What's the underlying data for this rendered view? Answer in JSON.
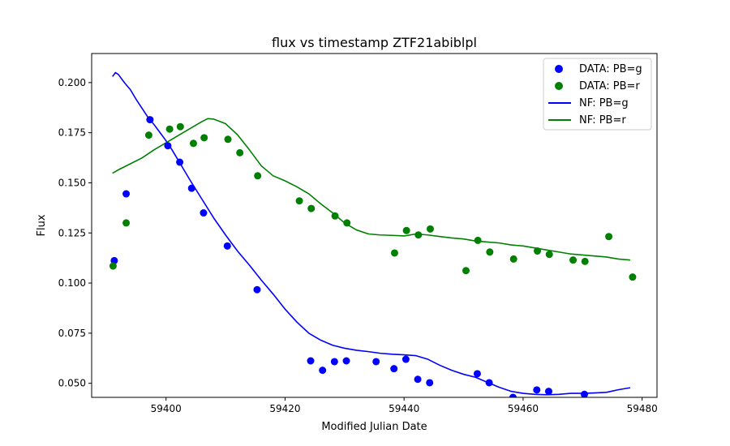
{
  "chart_data": {
    "type": "scatter",
    "title": "flux vs timestamp ZTF21abiblpl",
    "xlabel": "Modified Julian Date",
    "ylabel": "Flux",
    "xlim": [
      59387.5,
      59482.5
    ],
    "ylim": [
      0.043,
      0.2145
    ],
    "xticks": [
      59400,
      59420,
      59440,
      59460,
      59480
    ],
    "yticks": [
      0.05,
      0.075,
      0.1,
      0.125,
      0.15,
      0.175,
      0.2
    ],
    "xtick_labels": [
      "59400",
      "59420",
      "59440",
      "59460",
      "59480"
    ],
    "ytick_labels": [
      "0.050",
      "0.075",
      "0.100",
      "0.125",
      "0.150",
      "0.175",
      "0.200"
    ],
    "grid": false,
    "legend_position": "top-right",
    "colors": {
      "g": "#0000ff",
      "r": "#008000"
    },
    "series": [
      {
        "name": "DATA: PB=g",
        "kind": "scatter",
        "color": "#0000ff",
        "x": [
          59391.3,
          59393.3,
          59397.3,
          59400.3,
          59402.3,
          59404.3,
          59406.3,
          59410.3,
          59415.3,
          59424.3,
          59426.3,
          59428.3,
          59430.3,
          59435.3,
          59438.3,
          59440.3,
          59442.3,
          59444.3,
          59452.3,
          59454.3,
          59458.3,
          59460.3,
          59462.3,
          59464.3,
          59470.3
        ],
        "y": [
          0.1112,
          0.1445,
          0.1815,
          0.1685,
          0.1603,
          0.1473,
          0.135,
          0.1185,
          0.0967,
          0.0612,
          0.0565,
          0.0608,
          0.0612,
          0.0608,
          0.0573,
          0.062,
          0.052,
          0.0503,
          0.0548,
          0.0503,
          0.043,
          0.0413,
          0.0467,
          0.046,
          0.0445
        ]
      },
      {
        "name": "DATA: PB=r",
        "kind": "scatter",
        "color": "#008000",
        "x": [
          59391.1,
          59393.3,
          59397.1,
          59400.6,
          59402.4,
          59404.6,
          59406.4,
          59410.4,
          59412.4,
          59415.4,
          59422.4,
          59424.4,
          59428.4,
          59430.4,
          59438.4,
          59440.4,
          59442.4,
          59444.4,
          59450.4,
          59452.4,
          59454.4,
          59458.4,
          59462.4,
          59464.4,
          59468.4,
          59470.4,
          59474.4,
          59478.4
        ],
        "y": [
          0.1085,
          0.13,
          0.1738,
          0.1768,
          0.178,
          0.1697,
          0.1725,
          0.1717,
          0.165,
          0.1535,
          0.141,
          0.1372,
          0.1335,
          0.13,
          0.115,
          0.1262,
          0.124,
          0.127,
          0.1062,
          0.1213,
          0.1155,
          0.112,
          0.116,
          0.1143,
          0.1115,
          0.1108,
          0.1232,
          0.103
        ]
      },
      {
        "name": "NF: PB=g",
        "kind": "line",
        "color": "#0000ff",
        "x": [
          59391.0,
          59391.5,
          59392.0,
          59393.0,
          59394.0,
          59395.0,
          59396.0,
          59397.0,
          59398.0,
          59399.0,
          59400.0,
          59401.0,
          59402.0,
          59403.0,
          59404.0,
          59406.0,
          59408.0,
          59410.0,
          59412.0,
          59414.0,
          59416.0,
          59418.0,
          59420.0,
          59422.0,
          59424.0,
          59426.0,
          59428.0,
          59430.0,
          59432.0,
          59434.0,
          59436.0,
          59438.0,
          59440.0,
          59442.0,
          59444.0,
          59446.0,
          59448.0,
          59450.0,
          59452.0,
          59454.0,
          59456.0,
          59458.0,
          59460.0,
          59462.0,
          59464.0,
          59466.0,
          59468.0,
          59470.0,
          59472.0,
          59474.0,
          59476.0,
          59478.0
        ],
        "y": [
          0.203,
          0.205,
          0.204,
          0.2,
          0.1965,
          0.1915,
          0.187,
          0.1825,
          0.179,
          0.175,
          0.171,
          0.1665,
          0.1615,
          0.1565,
          0.1515,
          0.142,
          0.1325,
          0.124,
          0.116,
          0.109,
          0.1015,
          0.0945,
          0.087,
          0.0805,
          0.075,
          0.0715,
          0.069,
          0.0675,
          0.0665,
          0.0658,
          0.065,
          0.0645,
          0.0642,
          0.0638,
          0.062,
          0.059,
          0.0565,
          0.0545,
          0.053,
          0.0505,
          0.048,
          0.046,
          0.045,
          0.0445,
          0.0443,
          0.0445,
          0.045,
          0.045,
          0.0452,
          0.0455,
          0.0468,
          0.0478
        ]
      },
      {
        "name": "NF: PB=r",
        "kind": "line",
        "color": "#008000",
        "x": [
          59391.0,
          59392.0,
          59394.0,
          59396.0,
          59398.0,
          59400.0,
          59402.0,
          59404.0,
          59406.0,
          59407.0,
          59408.0,
          59410.0,
          59412.0,
          59414.0,
          59416.0,
          59418.0,
          59420.0,
          59422.0,
          59424.0,
          59426.0,
          59428.0,
          59430.0,
          59432.0,
          59434.0,
          59436.0,
          59438.0,
          59440.0,
          59442.0,
          59444.0,
          59446.0,
          59448.0,
          59450.0,
          59452.0,
          59454.0,
          59456.0,
          59458.0,
          59460.0,
          59462.0,
          59464.0,
          59466.0,
          59468.0,
          59470.0,
          59472.0,
          59474.0,
          59476.0,
          59478.0
        ],
        "y": [
          0.1548,
          0.1565,
          0.1595,
          0.1625,
          0.1665,
          0.17,
          0.1735,
          0.177,
          0.1805,
          0.182,
          0.1818,
          0.1795,
          0.174,
          0.1665,
          0.1585,
          0.1535,
          0.151,
          0.148,
          0.1445,
          0.1395,
          0.135,
          0.13,
          0.1265,
          0.1245,
          0.124,
          0.1238,
          0.1235,
          0.1245,
          0.124,
          0.1232,
          0.1225,
          0.122,
          0.121,
          0.1205,
          0.12,
          0.119,
          0.1185,
          0.1175,
          0.1165,
          0.1155,
          0.1145,
          0.114,
          0.1135,
          0.113,
          0.112,
          0.1115
        ]
      }
    ]
  }
}
